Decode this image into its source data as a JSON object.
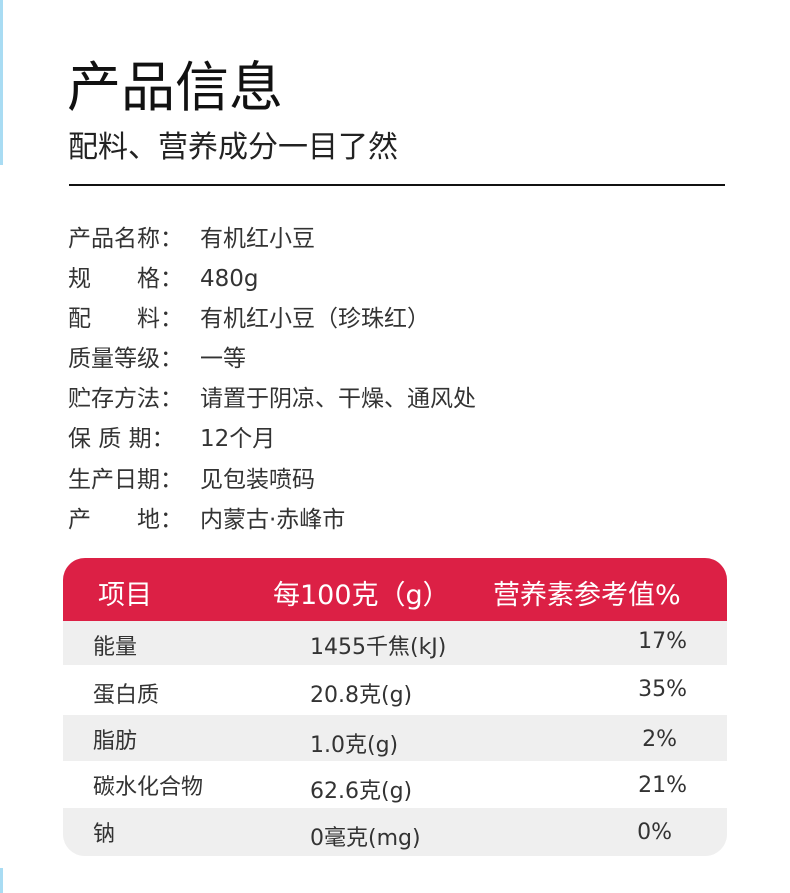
{
  "header": {
    "title": "产品信息",
    "subtitle": "配料、营养成分一目了然"
  },
  "info": [
    {
      "label": "产品名称：",
      "value": "有机红小豆"
    },
    {
      "label": "规　　格：",
      "value": "480g"
    },
    {
      "label": "配　　料：",
      "value": "有机红小豆（珍珠红）"
    },
    {
      "label": "质量等级：",
      "value": "一等"
    },
    {
      "label": "贮存方法：",
      "value": "请置于阴凉、干燥、通风处"
    },
    {
      "label": "保 质 期：",
      "value": "12个月"
    },
    {
      "label": "生产日期：",
      "value": "见包装喷码"
    },
    {
      "label": "产　　地：",
      "value": "内蒙古·赤峰市"
    }
  ],
  "table": {
    "headers": [
      "项目",
      "每100克（g）",
      "营养素参考值%"
    ],
    "rows": [
      {
        "item": "能量",
        "per100": "1455千焦(kJ)",
        "nrv": "17%"
      },
      {
        "item": "蛋白质",
        "per100": "20.8克(g)",
        "nrv": "35%"
      },
      {
        "item": "脂肪",
        "per100": "1.0克(g)",
        "nrv": "2%"
      },
      {
        "item": "碳水化合物",
        "per100": "62.6克(g)",
        "nrv": "21%"
      },
      {
        "item": "钠",
        "per100": "0毫克(mg)",
        "nrv": "0%"
      }
    ]
  },
  "colors": {
    "accent": "#dc2045",
    "row_gray": "#efefef"
  }
}
